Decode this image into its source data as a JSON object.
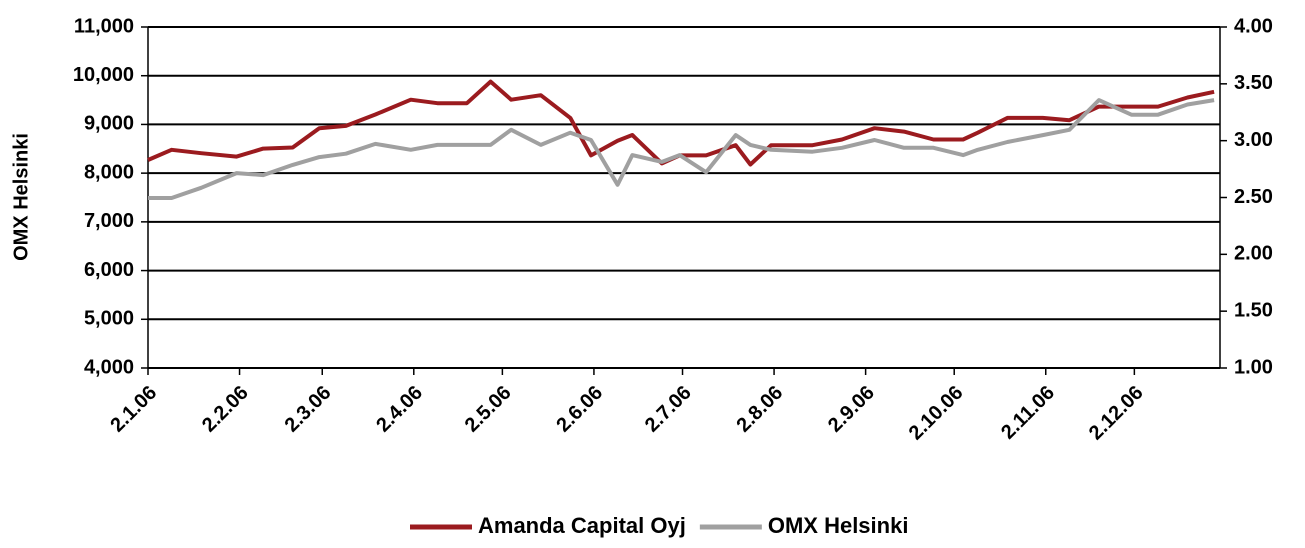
{
  "chart_data": {
    "type": "line",
    "y_label": "OMX Helsinki",
    "x": [
      "2.1.06",
      "10.1.06",
      "20.1.06",
      "1.2.06",
      "10.2.06",
      "20.2.06",
      "1.3.06",
      "10.3.06",
      "20.3.06",
      "1.4.06",
      "10.4.06",
      "20.4.06",
      "28.4.06",
      "5.5.06",
      "15.5.06",
      "25.5.06",
      "1.6.06",
      "10.6.06",
      "15.6.06",
      "25.6.06",
      "1.7.06",
      "10.7.06",
      "20.7.06",
      "25.7.06",
      "1.8.06",
      "15.8.06",
      "25.8.06",
      "5.9.06",
      "15.9.06",
      "25.9.06",
      "5.10.06",
      "10.10.06",
      "20.10.06",
      "1.11.06",
      "10.11.06",
      "20.11.06",
      "1.12.06",
      "10.12.06",
      "20.12.06",
      "29.12.06"
    ],
    "xlim": [
      "2.1.06",
      "31.12.06"
    ],
    "xticks": [
      "2.1.06",
      "2.2.06",
      "2.3.06",
      "2.4.06",
      "2.5.06",
      "2.6.06",
      "2.7.06",
      "2.8.06",
      "2.9.06",
      "2.10.06",
      "2.11.06",
      "2.12.06"
    ],
    "series": [
      {
        "name": "Amanda Capital Oyj",
        "color": "#9b1b1f",
        "axis": "y2",
        "values": [
          2.83,
          2.92,
          2.89,
          2.86,
          2.93,
          2.94,
          3.11,
          3.13,
          3.23,
          3.36,
          3.33,
          3.33,
          3.52,
          3.36,
          3.4,
          3.2,
          2.87,
          3.0,
          3.05,
          2.8,
          2.87,
          2.87,
          2.96,
          2.79,
          2.96,
          2.96,
          3.01,
          3.11,
          3.08,
          3.01,
          3.01,
          3.07,
          3.2,
          3.2,
          3.18,
          3.3,
          3.3,
          3.3,
          3.38,
          3.43
        ]
      },
      {
        "name": "OMX Helsinki",
        "color": "#a0a0a0",
        "values": [
          7490,
          7490,
          7700,
          8000,
          7960,
          8170,
          8330,
          8400,
          8600,
          8480,
          8580,
          8580,
          8580,
          8890,
          8580,
          8830,
          8680,
          7760,
          8370,
          8230,
          8370,
          8020,
          8780,
          8580,
          8480,
          8440,
          8520,
          8680,
          8520,
          8520,
          8370,
          8480,
          8640,
          8780,
          8890,
          9500,
          9200,
          9200,
          9410,
          9500
        ]
      }
    ],
    "ylim": [
      4000,
      11000
    ],
    "yticks": [
      {
        "value": 4000,
        "label": "4,000"
      },
      {
        "value": 5000,
        "label": "5,000"
      },
      {
        "value": 6000,
        "label": "6,000"
      },
      {
        "value": 7000,
        "label": "7,000"
      },
      {
        "value": 8000,
        "label": "8,000"
      },
      {
        "value": 9000,
        "label": "9,000"
      },
      {
        "value": 10000,
        "label": "10,000"
      },
      {
        "value": 11000,
        "label": "11,000"
      }
    ],
    "y2lim": [
      1,
      4
    ],
    "y2ticks": [
      {
        "value": 1,
        "label": "1.00"
      },
      {
        "value": 1.5,
        "label": "1.50"
      },
      {
        "value": 2,
        "label": "2.00"
      },
      {
        "value": 2.5,
        "label": "2.50"
      },
      {
        "value": 3,
        "label": "3.00"
      },
      {
        "value": 3.5,
        "label": "3.50"
      },
      {
        "value": 4,
        "label": "4.00"
      }
    ],
    "grid": true,
    "legend": "bottom"
  }
}
